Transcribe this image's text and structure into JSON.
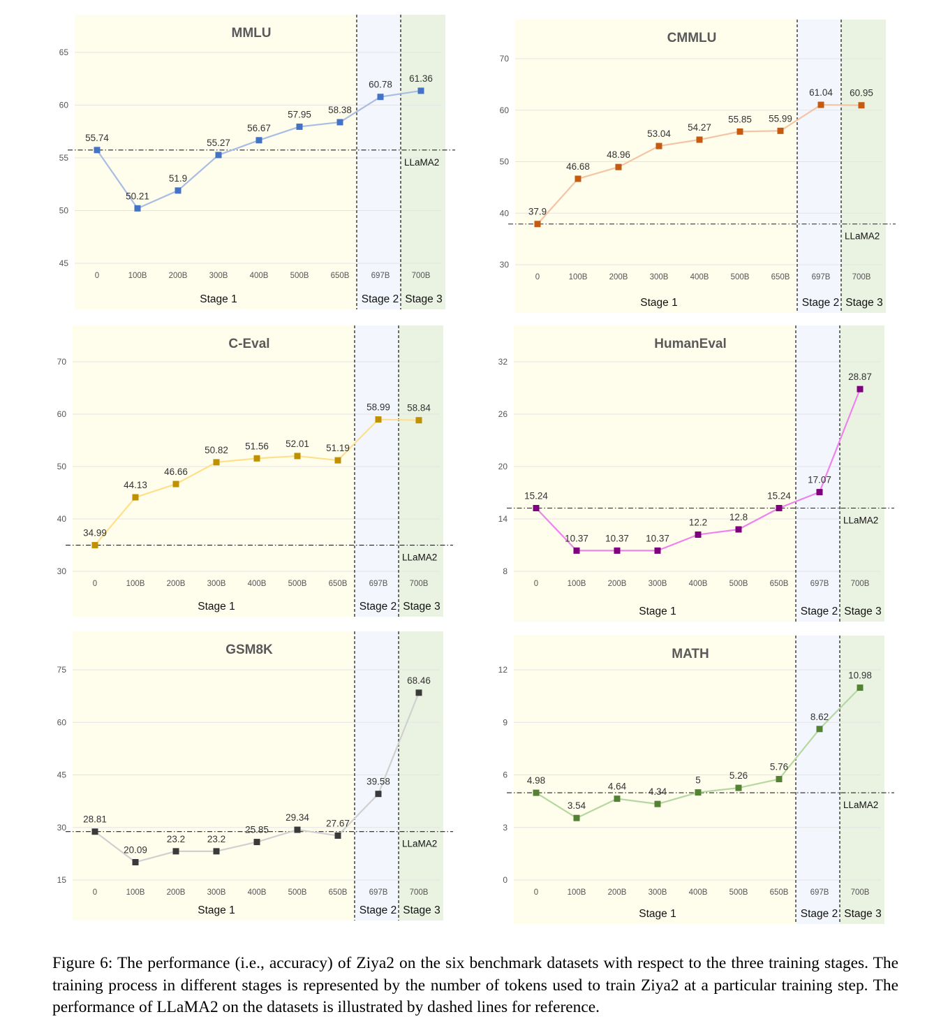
{
  "chart_data": [
    {
      "type": "line",
      "title": "MMLU",
      "categories": [
        "0",
        "100B",
        "200B",
        "300B",
        "400B",
        "500B",
        "650B",
        "697B",
        "700B"
      ],
      "series": [
        {
          "values": [
            55.74,
            50.21,
            51.9,
            55.27,
            56.67,
            57.95,
            58.38,
            60.78,
            61.36
          ]
        }
      ],
      "data_labels": [
        "55.74",
        "50.21",
        "51.9",
        "55.27",
        "56.67",
        "57.95",
        "58.38",
        "60.78",
        "61.36"
      ],
      "yticks": [
        45,
        50,
        55,
        60,
        65
      ],
      "ylim": [
        45,
        65
      ],
      "baseline": {
        "label": "LLaMA2",
        "value": 55.74
      },
      "stages": [
        "Stage 1",
        "Stage 2",
        "Stage 3"
      ],
      "color": "#4472C4",
      "line_color": "#A9BDE4",
      "grid": true
    },
    {
      "type": "line",
      "title": "CMMLU",
      "categories": [
        "0",
        "100B",
        "200B",
        "300B",
        "400B",
        "500B",
        "650B",
        "697B",
        "700B"
      ],
      "series": [
        {
          "values": [
            37.9,
            46.68,
            48.96,
            53.04,
            54.27,
            55.85,
            55.99,
            61.04,
            60.95
          ]
        }
      ],
      "data_labels": [
        "37.9",
        "46.68",
        "48.96",
        "53.04",
        "54.27",
        "55.85",
        "55.99",
        "61.04",
        "60.95"
      ],
      "yticks": [
        30,
        40,
        50,
        60,
        70
      ],
      "ylim": [
        30,
        70
      ],
      "baseline": {
        "label": "LLaMA2",
        "value": 37.9
      },
      "stages": [
        "Stage 1",
        "Stage 2",
        "Stage 3"
      ],
      "color": "#C55A11",
      "line_color": "#F4C4A5",
      "grid": true
    },
    {
      "type": "line",
      "title": "C-Eval",
      "categories": [
        "0",
        "100B",
        "200B",
        "300B",
        "400B",
        "500B",
        "650B",
        "697B",
        "700B"
      ],
      "series": [
        {
          "values": [
            34.99,
            44.13,
            46.66,
            50.82,
            51.56,
            52.01,
            51.19,
            58.99,
            58.84
          ]
        }
      ],
      "data_labels": [
        "34.99",
        "44.13",
        "46.66",
        "50.82",
        "51.56",
        "52.01",
        "51.19",
        "58.99",
        "58.84"
      ],
      "yticks": [
        30,
        40,
        50,
        60,
        70
      ],
      "ylim": [
        30,
        70
      ],
      "baseline": {
        "label": "LLaMA2",
        "value": 34.99
      },
      "stages": [
        "Stage 1",
        "Stage 2",
        "Stage 3"
      ],
      "color": "#BF9000",
      "line_color": "#FFE08A",
      "grid": true
    },
    {
      "type": "line",
      "title": "HumanEval",
      "categories": [
        "0",
        "100B",
        "200B",
        "300B",
        "400B",
        "500B",
        "650B",
        "697B",
        "700B"
      ],
      "series": [
        {
          "values": [
            15.24,
            10.37,
            10.37,
            10.37,
            12.2,
            12.8,
            15.24,
            17.07,
            28.87
          ]
        }
      ],
      "data_labels": [
        "15.24",
        "10.37",
        "10.37",
        "10.37",
        "12.2",
        "12.8",
        "15.24",
        "17.07",
        "28.87"
      ],
      "yticks": [
        8,
        14,
        20,
        26,
        32
      ],
      "ylim": [
        8,
        32
      ],
      "baseline": {
        "label": "LLaMA2",
        "value": 15.24
      },
      "stages": [
        "Stage 1",
        "Stage 2",
        "Stage 3"
      ],
      "color": "#7F007F",
      "line_color": "#EE82EE",
      "grid": true
    },
    {
      "type": "line",
      "title": "GSM8K",
      "categories": [
        "0",
        "100B",
        "200B",
        "300B",
        "400B",
        "500B",
        "650B",
        "697B",
        "700B"
      ],
      "series": [
        {
          "values": [
            28.81,
            20.09,
            23.2,
            23.2,
            25.85,
            29.34,
            27.67,
            39.58,
            68.46
          ]
        }
      ],
      "data_labels": [
        "28.81",
        "20.09",
        "23.2",
        "23.2",
        "25.85",
        "29.34",
        "27.67",
        "39.58",
        "68.46"
      ],
      "yticks": [
        15,
        30,
        45,
        60,
        75
      ],
      "ylim": [
        15,
        75
      ],
      "baseline": {
        "label": "LLaMA2",
        "value": 28.81
      },
      "stages": [
        "Stage 1",
        "Stage 2",
        "Stage 3"
      ],
      "color": "#3A3A3A",
      "line_color": "#D0D0D0",
      "grid": true
    },
    {
      "type": "line",
      "title": "MATH",
      "categories": [
        "0",
        "100B",
        "200B",
        "300B",
        "400B",
        "500B",
        "650B",
        "697B",
        "700B"
      ],
      "series": [
        {
          "values": [
            4.98,
            3.54,
            4.64,
            4.34,
            5,
            5.26,
            5.76,
            8.62,
            10.98
          ]
        }
      ],
      "data_labels": [
        "4.98",
        "3.54",
        "4.64",
        "4.34",
        "5",
        "5.26",
        "5.76",
        "8.62",
        "10.98"
      ],
      "yticks": [
        0,
        3,
        6,
        9,
        12
      ],
      "ylim": [
        0,
        12
      ],
      "baseline": {
        "label": "LLaMA2",
        "value": 4.98
      },
      "stages": [
        "Stage 1",
        "Stage 2",
        "Stage 3"
      ],
      "color": "#548235",
      "line_color": "#B5D8A0",
      "grid": true
    }
  ],
  "caption": "Figure 6: The performance (i.e., accuracy) of Ziya2 on the six benchmark datasets with respect to the three training stages. The training process in different stages is represented by the number of tokens used to train Ziya2 at a particular training step. The performance of LLaMA2 on the datasets is illustrated by dashed lines for reference."
}
